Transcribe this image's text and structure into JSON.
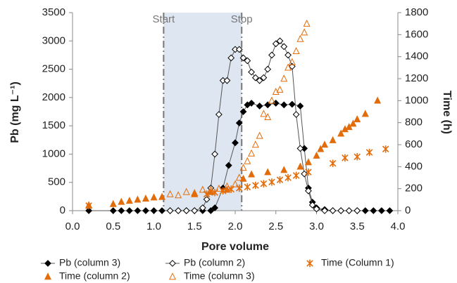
{
  "chart_data": {
    "type": "scatter",
    "xlabel": "Pore volume",
    "ylabel": "Pb (mg L⁻¹)",
    "y2label": "Time (h)",
    "xlim": [
      0,
      4
    ],
    "xticks": [
      {
        "value": 0,
        "label": "0.0"
      },
      0.5,
      {
        "value": 1,
        "label": "1.0"
      },
      1.5,
      {
        "value": 2,
        "label": "2.0"
      },
      2.5,
      {
        "value": 3,
        "label": "3.0"
      },
      3.5,
      {
        "value": 4,
        "label": "4.0"
      }
    ],
    "ylim": [
      0,
      3500
    ],
    "yticks": [
      0,
      500,
      1000,
      1500,
      2000,
      2500,
      3000,
      3500
    ],
    "y2lim": [
      0,
      1800
    ],
    "y2ticks": [
      0,
      200,
      400,
      600,
      800,
      1000,
      1200,
      1400,
      1600,
      1800
    ],
    "grid": false,
    "annotations": [
      {
        "text": "Start",
        "x": 1.12
      },
      {
        "text": "Stop",
        "x": 2.08
      }
    ],
    "shade_color": "#dde6f1",
    "series": [
      {
        "name": "Pb (column 3)",
        "color": "#000000",
        "marker": "diamond-filled",
        "line": true,
        "x": [
          0.2,
          0.5,
          0.6,
          0.7,
          0.8,
          0.9,
          1.0,
          1.1,
          1.2,
          1.3,
          1.4,
          1.5,
          1.6,
          1.7,
          1.75,
          1.85,
          1.92,
          2.0,
          2.05,
          2.1,
          2.15,
          2.2,
          2.3,
          2.4,
          2.5,
          2.6,
          2.7,
          2.8,
          2.85,
          2.9,
          2.95,
          3.0,
          3.1,
          3.2,
          3.3,
          3.4,
          3.5,
          3.6,
          3.7,
          3.8,
          3.9
        ],
        "values": [
          0,
          0,
          0,
          0,
          0,
          0,
          0,
          0,
          0,
          0,
          0,
          0,
          0,
          0,
          50,
          400,
          800,
          1200,
          1550,
          1750,
          1870,
          1900,
          1850,
          1870,
          1900,
          1870,
          1880,
          1850,
          1100,
          400,
          150,
          50,
          20,
          0,
          0,
          0,
          0,
          0,
          0,
          0,
          0
        ]
      },
      {
        "name": "Pb (column 2)",
        "color": "#000000",
        "marker": "diamond-open",
        "line": true,
        "x": [
          1.2,
          1.3,
          1.4,
          1.5,
          1.6,
          1.65,
          1.7,
          1.75,
          1.8,
          1.85,
          1.9,
          1.95,
          2.0,
          2.05,
          2.1,
          2.15,
          2.2,
          2.25,
          2.3,
          2.35,
          2.4,
          2.45,
          2.5,
          2.55,
          2.6,
          2.65,
          2.7,
          2.75,
          2.8,
          2.85,
          2.9,
          2.95,
          3.0,
          3.1,
          3.2,
          3.3,
          3.4,
          3.5
        ],
        "values": [
          0,
          0,
          0,
          0,
          50,
          200,
          400,
          1000,
          1700,
          2300,
          2300,
          2700,
          2850,
          2850,
          2700,
          2650,
          2450,
          2350,
          2300,
          2350,
          2500,
          2750,
          2950,
          3000,
          2900,
          2750,
          2550,
          1700,
          1100,
          650,
          350,
          100,
          30,
          0,
          0,
          0,
          0,
          0
        ]
      },
      {
        "name": "Time (Column 1)",
        "color": "#e36c0a",
        "marker": "asterisk",
        "line": false,
        "axis": "y2",
        "x": [
          0.2,
          1.65,
          1.75,
          1.85,
          1.95,
          2.05,
          2.15,
          2.25,
          2.35,
          2.45,
          2.55,
          2.65,
          2.75,
          2.9,
          3.2,
          3.35,
          3.5,
          3.65,
          3.85
        ],
        "values": [
          45,
          150,
          165,
          180,
          195,
          205,
          215,
          230,
          245,
          260,
          280,
          300,
          320,
          350,
          430,
          480,
          490,
          530,
          560
        ]
      },
      {
        "name": "Time (column 2)",
        "color": "#e36c0a",
        "marker": "triangle-filled",
        "line": false,
        "axis": "y2",
        "x": [
          0.2,
          0.5,
          0.6,
          0.7,
          0.8,
          0.9,
          1.0,
          1.1,
          1.5,
          1.7,
          1.9,
          2.1,
          2.2,
          2.4,
          2.6,
          2.8,
          2.9,
          3.0,
          3.05,
          3.1,
          3.2,
          3.3,
          3.35,
          3.4,
          3.45,
          3.5,
          3.6,
          3.75
        ],
        "values": [
          50,
          60,
          80,
          90,
          100,
          110,
          120,
          125,
          150,
          170,
          190,
          290,
          330,
          350,
          370,
          400,
          440,
          500,
          560,
          600,
          640,
          700,
          740,
          760,
          790,
          830,
          880,
          1000
        ]
      },
      {
        "name": "Time (column 3)",
        "color": "#e36c0a",
        "marker": "triangle-open",
        "line": false,
        "axis": "y2",
        "x": [
          1.2,
          1.3,
          1.4,
          1.5,
          1.6,
          1.7,
          1.8,
          1.9,
          2.0,
          2.05,
          2.1,
          2.15,
          2.2,
          2.25,
          2.3,
          2.35,
          2.4,
          2.45,
          2.5,
          2.55,
          2.6,
          2.65,
          2.7,
          2.75,
          2.8,
          2.85,
          2.88
        ],
        "values": [
          150,
          140,
          170,
          160,
          190,
          190,
          200,
          220,
          240,
          300,
          390,
          450,
          520,
          600,
          680,
          880,
          850,
          1000,
          1080,
          1100,
          1200,
          1300,
          1350,
          1450,
          1560,
          1620,
          1700
        ]
      }
    ]
  }
}
